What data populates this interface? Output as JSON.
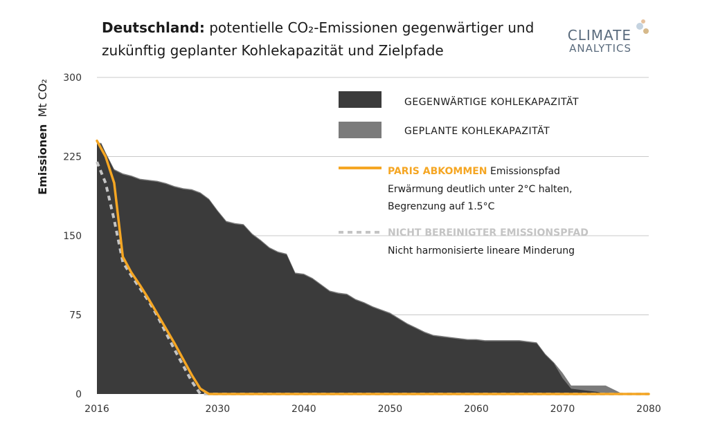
{
  "title": {
    "bold": "Deutschland:",
    "line1_rest": " potentielle CO₂-Emissionen gegenwärtiger und",
    "line2": "zukünftig geplanter Kohlekapazität und Zielpfade"
  },
  "logo": {
    "line1": "CLIMATE",
    "line2": "ANALYTICS"
  },
  "colors": {
    "current_capacity": "#3b3b3b",
    "planned_capacity": "#7b7b7b",
    "paris_pathway": "#f5a623",
    "unadjusted_pathway": "#c4c4c4",
    "grid": "#c8c8c8",
    "text": "#1a1a1a",
    "logo": "#5a6b7d"
  },
  "chart_data": {
    "type": "area",
    "ylabel_bold": "Emissionen",
    "ylabel_unit": "Mt CO₂",
    "xlim": [
      2016,
      2080
    ],
    "ylim": [
      0,
      300
    ],
    "yticks": [
      0,
      75,
      150,
      225,
      300
    ],
    "xticks": [
      2016,
      2030,
      2040,
      2050,
      2060,
      2070,
      2080
    ],
    "grid": "horizontal",
    "legend_position": "top-right",
    "series": [
      {
        "name": "GEGENWÄRTIGE KOHLEKAPAZITÄT",
        "kind": "area",
        "points": [
          [
            2016,
            237
          ],
          [
            2016.5,
            237
          ],
          [
            2017,
            228
          ],
          [
            2018,
            212
          ],
          [
            2019,
            208
          ],
          [
            2020,
            206
          ],
          [
            2021,
            203
          ],
          [
            2022,
            202
          ],
          [
            2023,
            201
          ],
          [
            2024,
            199
          ],
          [
            2025,
            196
          ],
          [
            2026,
            194
          ],
          [
            2027,
            193
          ],
          [
            2028,
            190
          ],
          [
            2029,
            184
          ],
          [
            2030,
            173
          ],
          [
            2031,
            163
          ],
          [
            2032,
            161
          ],
          [
            2033,
            160
          ],
          [
            2034,
            151
          ],
          [
            2035,
            145
          ],
          [
            2036,
            138
          ],
          [
            2037,
            134
          ],
          [
            2038,
            132
          ],
          [
            2039,
            114
          ],
          [
            2040,
            113
          ],
          [
            2041,
            109
          ],
          [
            2042,
            103
          ],
          [
            2043,
            97
          ],
          [
            2044,
            95
          ],
          [
            2045,
            94
          ],
          [
            2046,
            89
          ],
          [
            2047,
            86
          ],
          [
            2048,
            82
          ],
          [
            2049,
            79
          ],
          [
            2050,
            76
          ],
          [
            2051,
            71
          ],
          [
            2052,
            66
          ],
          [
            2053,
            62
          ],
          [
            2054,
            58
          ],
          [
            2055,
            55
          ],
          [
            2056,
            54
          ],
          [
            2057,
            53
          ],
          [
            2058,
            52
          ],
          [
            2059,
            51
          ],
          [
            2060,
            51
          ],
          [
            2061,
            50
          ],
          [
            2062,
            50
          ],
          [
            2063,
            50
          ],
          [
            2064,
            50
          ],
          [
            2065,
            50
          ],
          [
            2066,
            49
          ],
          [
            2067,
            48
          ],
          [
            2068,
            37
          ],
          [
            2069,
            29
          ],
          [
            2070,
            15
          ],
          [
            2071,
            5
          ],
          [
            2072,
            4
          ],
          [
            2073,
            3
          ],
          [
            2074,
            2
          ],
          [
            2075,
            0
          ],
          [
            2080,
            0
          ]
        ]
      },
      {
        "name": "GEPLANTE KOHLEKAPAZITÄT",
        "kind": "area",
        "points": [
          [
            2016,
            238
          ],
          [
            2016.5,
            238
          ],
          [
            2017,
            229
          ],
          [
            2018,
            213
          ],
          [
            2019,
            209
          ],
          [
            2020,
            207
          ],
          [
            2021,
            204
          ],
          [
            2022,
            203
          ],
          [
            2023,
            202
          ],
          [
            2024,
            200
          ],
          [
            2025,
            197
          ],
          [
            2026,
            195
          ],
          [
            2027,
            194
          ],
          [
            2028,
            191
          ],
          [
            2029,
            185
          ],
          [
            2030,
            174
          ],
          [
            2031,
            164
          ],
          [
            2032,
            162
          ],
          [
            2033,
            161
          ],
          [
            2034,
            152
          ],
          [
            2035,
            146
          ],
          [
            2036,
            139
          ],
          [
            2037,
            135
          ],
          [
            2038,
            133
          ],
          [
            2039,
            115
          ],
          [
            2040,
            114
          ],
          [
            2041,
            110
          ],
          [
            2042,
            104
          ],
          [
            2043,
            98
          ],
          [
            2044,
            96
          ],
          [
            2045,
            95
          ],
          [
            2046,
            90
          ],
          [
            2047,
            87
          ],
          [
            2048,
            83
          ],
          [
            2049,
            80
          ],
          [
            2050,
            77
          ],
          [
            2051,
            72
          ],
          [
            2052,
            67
          ],
          [
            2053,
            63
          ],
          [
            2054,
            59
          ],
          [
            2055,
            56
          ],
          [
            2056,
            55
          ],
          [
            2057,
            54
          ],
          [
            2058,
            53
          ],
          [
            2059,
            52
          ],
          [
            2060,
            52
          ],
          [
            2061,
            51
          ],
          [
            2062,
            51
          ],
          [
            2063,
            51
          ],
          [
            2064,
            51
          ],
          [
            2065,
            51
          ],
          [
            2066,
            50
          ],
          [
            2067,
            49
          ],
          [
            2068,
            38
          ],
          [
            2069,
            30
          ],
          [
            2070,
            20
          ],
          [
            2071,
            8
          ],
          [
            2072,
            8
          ],
          [
            2073,
            8
          ],
          [
            2074,
            8
          ],
          [
            2075,
            8
          ],
          [
            2076,
            4
          ],
          [
            2077,
            0
          ],
          [
            2080,
            0
          ]
        ]
      },
      {
        "name": "PARIS ABKOMMEN",
        "kind": "line",
        "points": [
          [
            2016,
            240
          ],
          [
            2017,
            225
          ],
          [
            2018,
            200
          ],
          [
            2019,
            130
          ],
          [
            2020,
            115
          ],
          [
            2021,
            103
          ],
          [
            2022,
            90
          ],
          [
            2023,
            76
          ],
          [
            2024,
            62
          ],
          [
            2025,
            48
          ],
          [
            2026,
            33
          ],
          [
            2027,
            18
          ],
          [
            2028,
            5
          ],
          [
            2029,
            0
          ],
          [
            2080,
            0
          ]
        ]
      },
      {
        "name": "NICHT BEREINIGTER EMISSIONSPFAD",
        "kind": "dashed-line",
        "points": [
          [
            2016,
            220
          ],
          [
            2017,
            200
          ],
          [
            2018,
            165
          ],
          [
            2019,
            125
          ],
          [
            2020,
            112
          ],
          [
            2021,
            100
          ],
          [
            2022,
            88
          ],
          [
            2023,
            74
          ],
          [
            2024,
            58
          ],
          [
            2025,
            42
          ],
          [
            2026,
            27
          ],
          [
            2027,
            12
          ],
          [
            2028,
            0
          ],
          [
            2080,
            0
          ]
        ]
      }
    ],
    "legend": [
      {
        "kind": "area",
        "label": "GEGENWÄRTIGE KOHLEKAPAZITÄT",
        "color_key": "current_capacity"
      },
      {
        "kind": "area",
        "label": "GEPLANTE KOHLEKAPAZITÄT",
        "color_key": "planned_capacity"
      },
      {
        "kind": "line",
        "label": "PARIS ABKOMMEN",
        "suffix": " Emissionspfad",
        "lines": [
          "Erwärmung deutlich unter 2°C halten,",
          "Begrenzung auf 1.5°C"
        ],
        "color_key": "paris_pathway"
      },
      {
        "kind": "dashed-line",
        "label": "NICHT BEREINIGTER EMISSIONSPFAD",
        "lines": [
          "Nicht harmonisierte lineare Minderung"
        ],
        "color_key": "unadjusted_pathway"
      }
    ]
  }
}
